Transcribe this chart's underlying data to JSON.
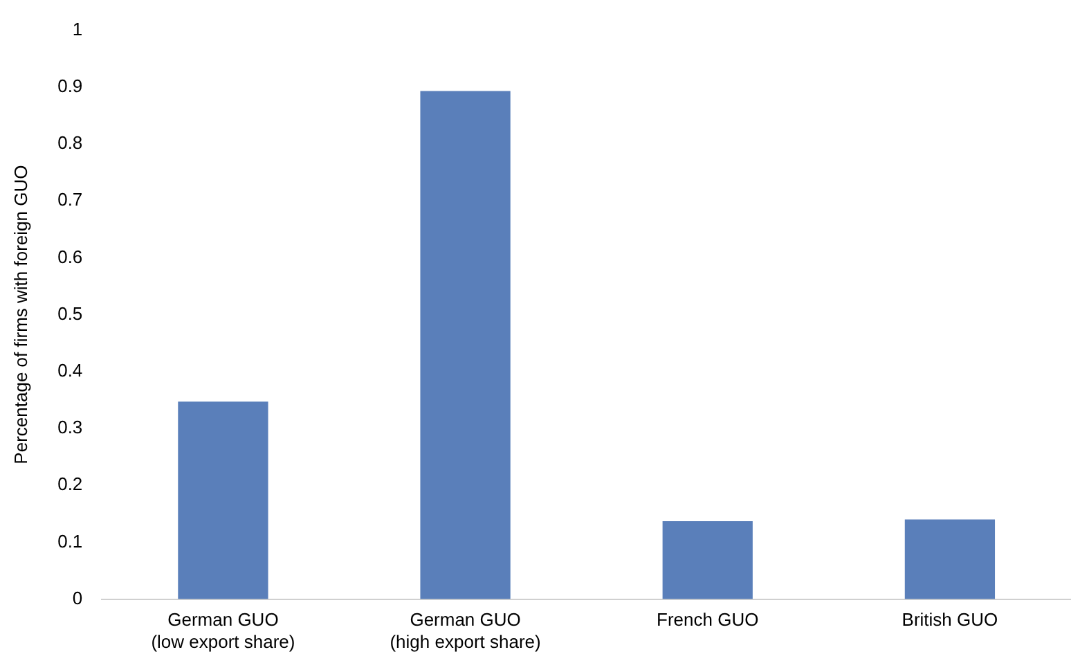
{
  "chart_data": {
    "type": "bar",
    "ylabel": "Percentage of firms with foreign GUO",
    "categories": [
      "German GUO\n(low export share)",
      "German GUO\n(high export share)",
      "French GUO",
      "British GUO"
    ],
    "values": [
      0.347,
      0.893,
      0.137,
      0.14
    ],
    "color": "#5a7fba",
    "ylim": [
      0,
      1
    ],
    "yticks": [
      0,
      0.1,
      0.2,
      0.3,
      0.4,
      0.5,
      0.6,
      0.7,
      0.8,
      0.9,
      1
    ],
    "grid": false,
    "legend": false
  }
}
